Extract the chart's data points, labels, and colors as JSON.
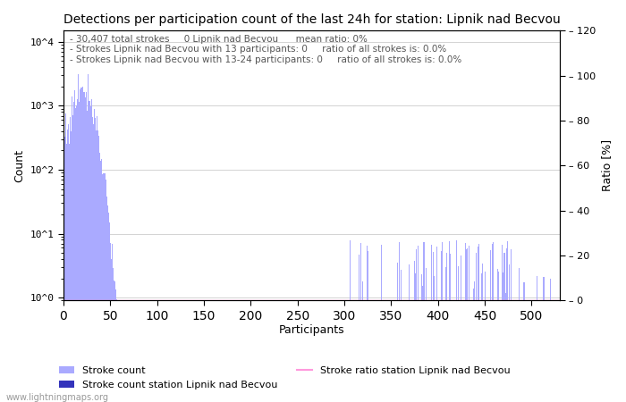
{
  "title": "Detections per participation count of the last 24h for station: Lipnik nad Becvou",
  "xlabel": "Participants",
  "ylabel_left": "Count",
  "ylabel_right": "Ratio [%]",
  "annotation_lines": [
    "30,407 total strokes     0 Lipnik nad Becvou      mean ratio: 0%",
    "Strokes Lipnik nad Becvou with 13 participants: 0     ratio of all strokes is: 0.0%",
    "Strokes Lipnik nad Becvou with 13-24 participants: 0     ratio of all strokes is: 0.0%"
  ],
  "bar_color_main": "#aaaaff",
  "bar_color_station": "#3333bb",
  "line_color_ratio": "#ff99dd",
  "watermark": "www.lightningmaps.org",
  "legend": [
    {
      "label": "Stroke count",
      "color": "#aaaaff"
    },
    {
      "label": "Stroke count station Lipnik nad Becvou",
      "color": "#3333bb"
    },
    {
      "label": "Stroke ratio station Lipnik nad Becvou",
      "color": "#ff99dd"
    }
  ],
  "xlim": [
    0,
    530
  ],
  "ylim_left": [
    0.9,
    15000
  ],
  "ylim_right": [
    0,
    120
  ],
  "right_yticks": [
    0,
    20,
    40,
    60,
    80,
    100,
    120
  ],
  "xticks": [
    0,
    50,
    100,
    150,
    200,
    250,
    300,
    350,
    400,
    450,
    500
  ],
  "figsize": [
    7.0,
    4.5
  ],
  "dpi": 100
}
